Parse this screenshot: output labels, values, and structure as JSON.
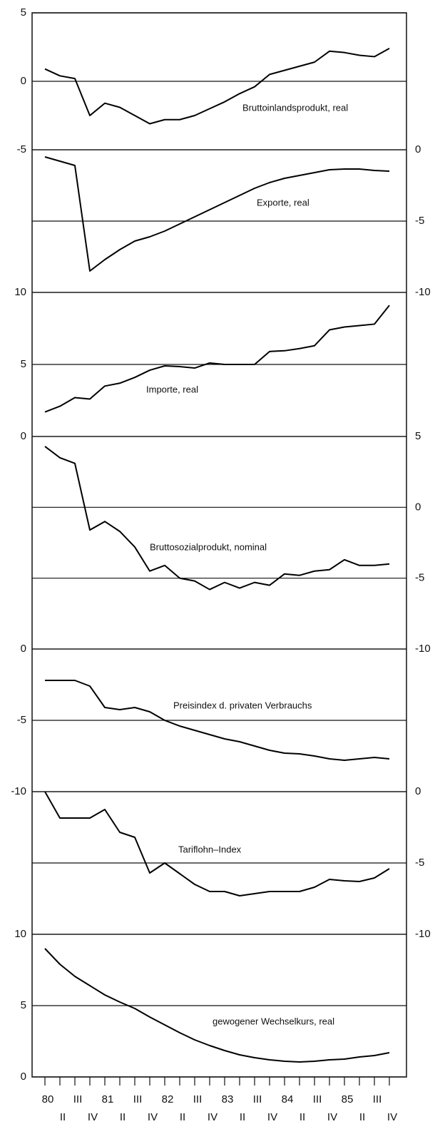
{
  "chart_data": [
    {
      "type": "line",
      "annotation": "Bruttoinlandsprodukt, real",
      "color": "#000000",
      "y_axis_side": "left",
      "ylim": [
        -5,
        5
      ],
      "yticks": [
        5,
        0,
        -5
      ],
      "values": [
        0.9,
        0.4,
        0.2,
        -2.5,
        -1.6,
        -1.9,
        -2.5,
        -3.1,
        -2.8,
        -2.8,
        -2.5,
        -2.0,
        -1.5,
        -0.9,
        -0.4,
        0.5,
        0.8,
        1.1,
        1.4,
        2.2,
        2.1,
        1.9,
        1.8,
        2.4
      ]
    },
    {
      "type": "line",
      "annotation": "Exporte, real",
      "color": "#000000",
      "y_axis_side": "right",
      "ylim": [
        -10,
        0
      ],
      "yticks": [
        0,
        -5,
        -10
      ],
      "values": [
        -0.5,
        -0.8,
        -1.1,
        -8.5,
        -7.7,
        -7.0,
        -6.4,
        -6.1,
        -5.7,
        -5.2,
        -4.7,
        -4.2,
        -3.7,
        -3.2,
        -2.7,
        -2.3,
        -2.0,
        -1.8,
        -1.6,
        -1.4,
        -1.35,
        -1.35,
        -1.45,
        -1.5
      ]
    },
    {
      "type": "line",
      "annotation": "Importe, real",
      "color": "#000000",
      "y_axis_side": "left",
      "ylim": [
        0,
        10
      ],
      "yticks": [
        10,
        5,
        0
      ],
      "values": [
        1.7,
        2.1,
        2.7,
        2.6,
        3.5,
        3.7,
        4.1,
        4.6,
        4.9,
        4.85,
        4.75,
        5.1,
        5.0,
        5.0,
        5.0,
        5.9,
        5.95,
        6.1,
        6.3,
        7.4,
        7.6,
        7.7,
        7.8,
        9.1
      ]
    },
    {
      "type": "line",
      "annotation": "Bruttosozialprodukt, nominal",
      "color": "#000000",
      "y_axis_side": "right",
      "ylim": [
        -10,
        5
      ],
      "yticks": [
        5,
        0,
        -5,
        -10
      ],
      "values": [
        4.3,
        3.5,
        3.1,
        -1.6,
        -1.0,
        -1.7,
        -2.8,
        -4.5,
        -4.1,
        -5.0,
        -5.2,
        -5.8,
        -5.3,
        -5.7,
        -5.3,
        -5.5,
        -4.7,
        -4.8,
        -4.5,
        -4.4,
        -3.7,
        -4.1,
        -4.1,
        -4.0
      ]
    },
    {
      "type": "line",
      "annotation": "Preisindex d. privaten Verbrauchs",
      "color": "#000000",
      "y_axis_side": "left",
      "ylim": [
        -10,
        0
      ],
      "yticks": [
        0,
        -5,
        -10
      ],
      "values": [
        -2.2,
        -2.2,
        -2.2,
        -2.6,
        -4.1,
        -4.25,
        -4.1,
        -4.4,
        -5.0,
        -5.4,
        -5.7,
        -6.0,
        -6.3,
        -6.5,
        -6.8,
        -7.1,
        -7.3,
        -7.35,
        -7.5,
        -7.7,
        -7.8,
        -7.7,
        -7.6,
        -7.7
      ]
    },
    {
      "type": "line",
      "annotation": "Tariflohn–Index",
      "color": "#000000",
      "y_axis_side": "right",
      "ylim": [
        -10,
        0
      ],
      "yticks": [
        0,
        -5,
        -10
      ],
      "values": [
        0.0,
        -1.85,
        -1.85,
        -1.85,
        -1.25,
        -2.85,
        -3.2,
        -5.7,
        -5.0,
        -5.75,
        -6.5,
        -7.0,
        -7.0,
        -7.3,
        -7.15,
        -7.0,
        -7.0,
        -7.0,
        -6.7,
        -6.15,
        -6.25,
        -6.3,
        -6.05,
        -5.4
      ]
    },
    {
      "type": "line",
      "annotation": "gewogener Wechselkurs, real",
      "color": "#000000",
      "y_axis_side": "left",
      "ylim": [
        0,
        10
      ],
      "yticks": [
        10,
        5,
        0
      ],
      "categories": [
        "80",
        "II",
        "III",
        "IV",
        "81",
        "II",
        "III",
        "IV",
        "82",
        "II",
        "III",
        "IV",
        "83",
        "II",
        "III",
        "IV",
        "84",
        "II",
        "III",
        "IV",
        "85",
        "II",
        "III",
        "IV"
      ],
      "values": [
        9.0,
        7.9,
        7.05,
        6.4,
        5.75,
        5.25,
        4.8,
        4.2,
        3.65,
        3.1,
        2.6,
        2.2,
        1.85,
        1.55,
        1.35,
        1.2,
        1.1,
        1.05,
        1.1,
        1.2,
        1.25,
        1.4,
        1.5,
        1.7
      ]
    }
  ]
}
